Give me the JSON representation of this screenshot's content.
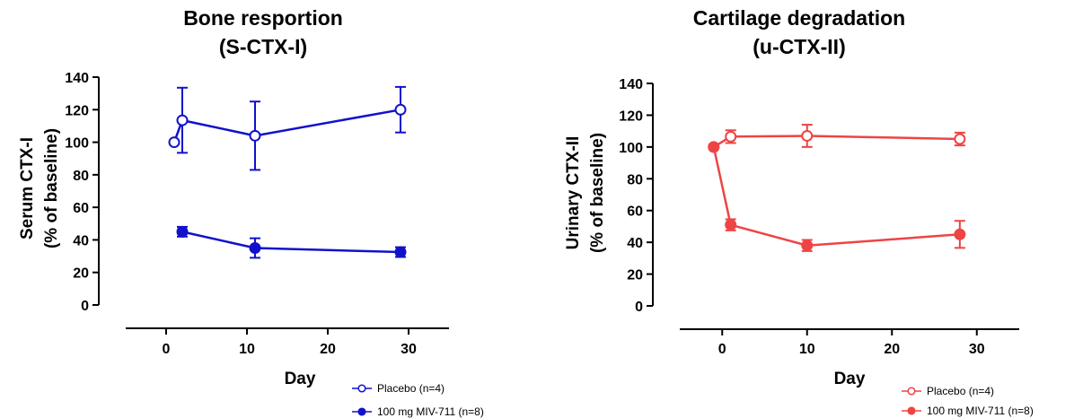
{
  "chart_data": [
    {
      "type": "line",
      "title": [
        "Bone resportion",
        "(S-CTX-I)"
      ],
      "xlabel": "Day",
      "ylabel": [
        "Serum CTX-I",
        "(% of baseline)"
      ],
      "xlim": [
        -5,
        35
      ],
      "ylim": [
        0,
        140
      ],
      "xticks": [
        0,
        10,
        20,
        30
      ],
      "yticks": [
        0,
        20,
        40,
        60,
        80,
        100,
        120,
        140
      ],
      "grid": false,
      "legend_position": "bottom-right",
      "color": "#1111cc",
      "series": [
        {
          "name": "Placebo (n=4)",
          "marker": "open-circle",
          "x": [
            1,
            2,
            11,
            29
          ],
          "y": [
            100,
            113.5,
            104,
            120
          ],
          "err": [
            0,
            20,
            21,
            14
          ]
        },
        {
          "name": "100 mg MIV-711 (n=8)",
          "marker": "filled-circle",
          "x": [
            2,
            11,
            29
          ],
          "y": [
            45,
            35,
            32.5
          ],
          "err": [
            3,
            6,
            3
          ]
        }
      ]
    },
    {
      "type": "line",
      "title": [
        "Cartilage degradation",
        "(u-CTX-II)"
      ],
      "xlabel": "Day",
      "ylabel": [
        "Urinary CTX-II",
        "(% of baseline)"
      ],
      "xlim": [
        -5,
        35
      ],
      "ylim": [
        0,
        140
      ],
      "xticks": [
        0,
        10,
        20,
        30
      ],
      "yticks": [
        0,
        20,
        40,
        60,
        80,
        100,
        120,
        140
      ],
      "grid": false,
      "legend_position": "bottom-right",
      "color": "#ee4444",
      "series": [
        {
          "name": "Placebo (n=4)",
          "marker": "open-circle",
          "x": [
            -1,
            1,
            10,
            28
          ],
          "y": [
            100,
            106.5,
            107,
            105
          ],
          "err": [
            0,
            4,
            7,
            4
          ]
        },
        {
          "name": "100 mg MIV-711 (n=8)",
          "marker": "filled-circle",
          "x": [
            -1,
            1,
            10,
            28
          ],
          "y": [
            100,
            51,
            38,
            45
          ],
          "err": [
            0,
            3.5,
            3.5,
            8.5
          ]
        }
      ]
    }
  ]
}
